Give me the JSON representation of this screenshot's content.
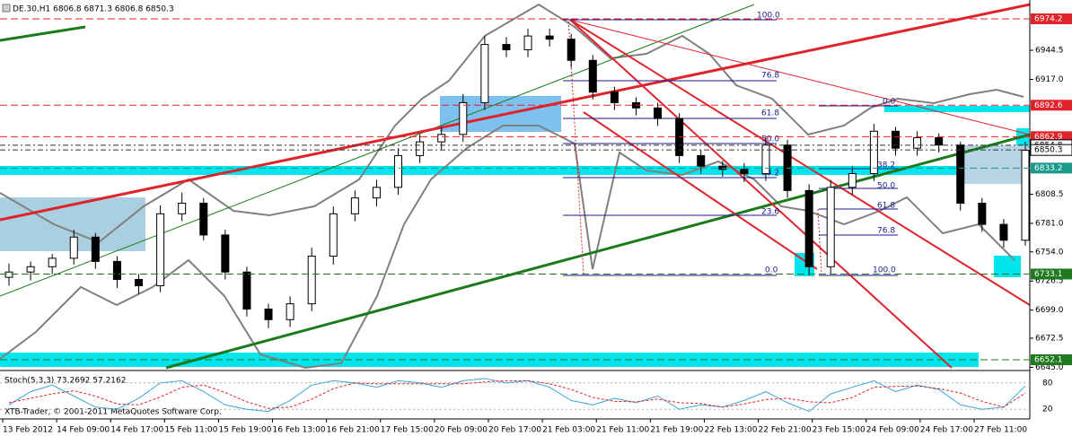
{
  "header": "DE.30,H1  6806.8 6871.3 6806.8 6850.3",
  "copyright": "XTB-Trader, © 2001-2011 MetaQuotes Software Corp.",
  "chart_data": {
    "type": "candlestick",
    "categories": [
      "13 Feb 2012",
      "14 Feb 09:00",
      "14 Feb 17:00",
      "15 Feb 11:00",
      "15 Feb 19:00",
      "16 Feb 13:00",
      "16 Feb 21:00",
      "17 Feb 15:00",
      "20 Feb 09:00",
      "20 Feb 17:00",
      "21 Feb 03:00",
      "21 Feb 11:00",
      "21 Feb 19:00",
      "22 Feb 13:00",
      "22 Feb 21:00",
      "23 Feb 15:00",
      "24 Feb 09:00",
      "24 Feb 17:00",
      "27 Feb 11:00"
    ],
    "open": [
      6730,
      6735,
      6740,
      6748,
      6768,
      6745,
      6728,
      6722,
      6790,
      6800,
      6770,
      6735,
      6700,
      6690,
      6705,
      6750,
      6790,
      6805,
      6815,
      6845,
      6858,
      6865,
      6895,
      6950,
      6945,
      6958,
      6955,
      6935,
      6905,
      6895,
      6890,
      6880,
      6845,
      6835,
      6832,
      6828,
      6855,
      6812,
      6740,
      6815,
      6828,
      6868,
      6852,
      6862,
      6855,
      6800,
      6780,
      6765
    ],
    "high": [
      6743,
      6745,
      6752,
      6775,
      6772,
      6750,
      6733,
      6798,
      6810,
      6805,
      6775,
      6740,
      6705,
      6712,
      6758,
      6797,
      6812,
      6822,
      6852,
      6865,
      6872,
      6903,
      6958,
      6957,
      6965,
      6965,
      6960,
      6940,
      6910,
      6900,
      6895,
      6885,
      6850,
      6840,
      6838,
      6862,
      6860,
      6818,
      6822,
      6835,
      6875,
      6872,
      6868,
      6866,
      6858,
      6805,
      6785,
      6858
    ],
    "low": [
      6722,
      6727,
      6733,
      6742,
      6738,
      6720,
      6714,
      6716,
      6783,
      6765,
      6728,
      6693,
      6682,
      6683,
      6698,
      6742,
      6783,
      6797,
      6808,
      6838,
      6851,
      6858,
      6888,
      6938,
      6938,
      6948,
      6928,
      6898,
      6888,
      6883,
      6873,
      6838,
      6828,
      6825,
      6820,
      6821,
      6805,
      6732,
      6733,
      6808,
      6821,
      6845,
      6845,
      6848,
      6793,
      6773,
      6758,
      6760
    ],
    "close": [
      6735,
      6740,
      6748,
      6768,
      6745,
      6728,
      6722,
      6790,
      6800,
      6770,
      6735,
      6700,
      6690,
      6705,
      6750,
      6790,
      6805,
      6815,
      6845,
      6858,
      6865,
      6895,
      6950,
      6945,
      6958,
      6955,
      6935,
      6905,
      6895,
      6890,
      6880,
      6845,
      6835,
      6832,
      6828,
      6855,
      6812,
      6740,
      6815,
      6828,
      6868,
      6852,
      6862,
      6855,
      6800,
      6780,
      6765,
      6850
    ],
    "ylim": [
      6642.8,
      6992
    ],
    "yticks": [
      6944.5,
      {
        "value": 6917,
        "label": "6917.0"
      },
      6808.5,
      {
        "value": 6781,
        "label": "6781.0"
      },
      {
        "value": 6754,
        "label": "6754.0"
      },
      6726.5,
      {
        "value": 6699,
        "label": "6699.0"
      },
      6672.5,
      {
        "value": 6645,
        "label": "6645.0"
      }
    ],
    "levels": [
      {
        "value": 6974.2,
        "color": "#e0232b"
      },
      {
        "value": 6892.6,
        "color": "#e0232b"
      },
      {
        "value": 6862.9,
        "color": "#e0232b"
      },
      {
        "value": 6854.8,
        "color": "#ffffff"
      },
      {
        "value": 6850.3,
        "color": "#ffffff"
      },
      {
        "value": 6833.2,
        "color": "#1a9a8a"
      },
      {
        "value": 6733.1,
        "color": "#1f7a1f"
      },
      {
        "value": 6652.1,
        "color": "#1f7a1f"
      }
    ],
    "fib_a": [
      "100.0",
      "76.8",
      "61.8",
      "50.0",
      "38.2",
      "23.6",
      "0.0"
    ],
    "fib_b": [
      "0.0",
      "38.2",
      "50.0",
      "61.8",
      "76.8",
      "100.0"
    ],
    "stoch": {
      "title": "Stoch(5,3,3) 73.2692 57.2162",
      "ylim": [
        0,
        100
      ],
      "yticks": [
        80,
        20
      ],
      "main": [
        30,
        60,
        75,
        50,
        25,
        20,
        45,
        80,
        85,
        60,
        30,
        20,
        15,
        40,
        75,
        85,
        80,
        70,
        85,
        80,
        70,
        85,
        90,
        80,
        85,
        70,
        40,
        30,
        45,
        35,
        50,
        20,
        30,
        25,
        40,
        60,
        35,
        15,
        55,
        70,
        85,
        60,
        75,
        65,
        30,
        20,
        25,
        73
      ],
      "signal": [
        35,
        45,
        55,
        62,
        50,
        32,
        30,
        48,
        70,
        75,
        58,
        37,
        22,
        25,
        43,
        67,
        80,
        78,
        78,
        78,
        78,
        78,
        82,
        85,
        85,
        78,
        65,
        47,
        38,
        37,
        43,
        35,
        33,
        25,
        32,
        42,
        45,
        37,
        35,
        47,
        70,
        72,
        73,
        67,
        57,
        38,
        25,
        57
      ]
    }
  }
}
